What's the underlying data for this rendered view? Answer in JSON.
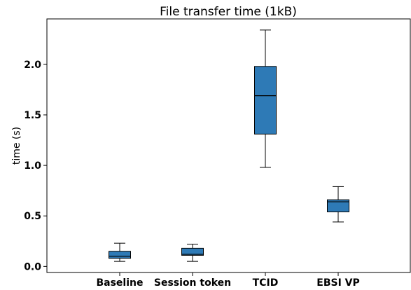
{
  "chart_data": {
    "type": "box",
    "title": "File transfer time (1kB)",
    "xlabel": "",
    "ylabel": "time (s)",
    "categories": [
      "Baseline",
      "Session token",
      "TCID",
      "EBSI VP"
    ],
    "boxes": [
      {
        "name": "Baseline",
        "whisker_low": 0.05,
        "q1": 0.08,
        "median": 0.1,
        "q3": 0.15,
        "whisker_high": 0.23
      },
      {
        "name": "Session token",
        "whisker_low": 0.05,
        "q1": 0.11,
        "median": 0.12,
        "q3": 0.18,
        "whisker_high": 0.22
      },
      {
        "name": "TCID",
        "whisker_low": 0.98,
        "q1": 1.31,
        "median": 1.69,
        "q3": 1.98,
        "whisker_high": 2.34
      },
      {
        "name": "EBSI VP",
        "whisker_low": 0.44,
        "q1": 0.54,
        "median": 0.64,
        "q3": 0.66,
        "whisker_high": 0.79
      }
    ],
    "yticks": [
      0.0,
      0.5,
      1.0,
      1.5,
      2.0
    ],
    "ytick_labels": [
      "0.0",
      "0.5",
      "1.0",
      "1.5",
      "2.0"
    ],
    "ylim": [
      -0.06,
      2.45
    ],
    "grid": false,
    "colors": {
      "box_fill": "#2e7ab6",
      "box_edge": "#000000",
      "median": "#000000",
      "whisker": "#000000"
    }
  }
}
